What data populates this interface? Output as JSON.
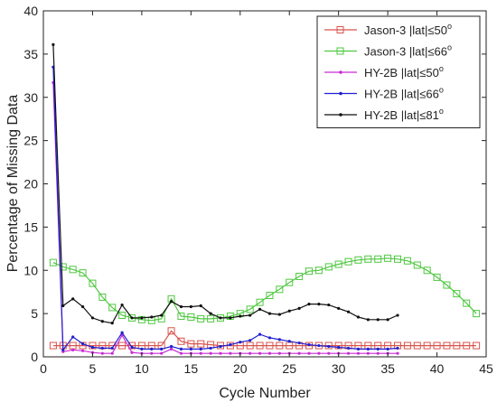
{
  "chart_data": {
    "type": "line",
    "title": "",
    "xlabel": "Cycle Number",
    "ylabel": "Percentage of Missing Data",
    "xlim": [
      0,
      45
    ],
    "ylim": [
      0,
      40
    ],
    "xticks": [
      0,
      5,
      10,
      15,
      20,
      25,
      30,
      35,
      40,
      45
    ],
    "yticks": [
      0,
      5,
      10,
      15,
      20,
      25,
      30,
      35,
      40
    ],
    "grid": false,
    "legend_position": "top-right",
    "series": [
      {
        "name": "Jason-3  |lat|≤50°",
        "legend_parts": [
          "Jason-3  |lat|",
          "≤",
          "50",
          "o"
        ],
        "color": "#d9544d",
        "marker": "square",
        "x": [
          1,
          2,
          3,
          4,
          5,
          6,
          7,
          8,
          9,
          10,
          11,
          12,
          13,
          14,
          15,
          16,
          17,
          18,
          19,
          20,
          21,
          22,
          23,
          24,
          25,
          26,
          27,
          28,
          29,
          30,
          31,
          32,
          33,
          34,
          35,
          36,
          37,
          38,
          39,
          40,
          41,
          42,
          43,
          44
        ],
        "y": [
          1.3,
          1.3,
          1.3,
          1.3,
          1.3,
          1.3,
          1.3,
          1.3,
          1.3,
          1.3,
          1.3,
          1.3,
          3.0,
          1.8,
          1.5,
          1.5,
          1.4,
          1.3,
          1.3,
          1.3,
          1.3,
          1.3,
          1.3,
          1.3,
          1.3,
          1.3,
          1.3,
          1.3,
          1.3,
          1.3,
          1.3,
          1.3,
          1.3,
          1.3,
          1.3,
          1.3,
          1.3,
          1.3,
          1.3,
          1.3,
          1.3,
          1.3,
          1.3,
          1.3
        ]
      },
      {
        "name": "Jason-3  |lat|≤66°",
        "legend_parts": [
          "Jason-3  |lat|",
          "≤",
          "66",
          "o"
        ],
        "color": "#4fc840",
        "marker": "square",
        "x": [
          1,
          2,
          3,
          4,
          5,
          6,
          7,
          8,
          9,
          10,
          11,
          12,
          13,
          14,
          15,
          16,
          17,
          18,
          19,
          20,
          21,
          22,
          23,
          24,
          25,
          26,
          27,
          28,
          29,
          30,
          31,
          32,
          33,
          34,
          35,
          36,
          37,
          38,
          39,
          40,
          41,
          42,
          43,
          44
        ],
        "y": [
          10.9,
          10.4,
          10.1,
          9.7,
          8.5,
          6.9,
          5.7,
          4.8,
          4.5,
          4.3,
          4.2,
          4.4,
          6.7,
          4.7,
          4.6,
          4.4,
          4.4,
          4.5,
          4.7,
          5.0,
          5.5,
          6.3,
          7.1,
          7.8,
          8.6,
          9.3,
          9.9,
          10.0,
          10.4,
          10.7,
          11.0,
          11.2,
          11.3,
          11.3,
          11.4,
          11.3,
          11.1,
          10.6,
          10.0,
          9.2,
          8.3,
          7.3,
          6.2,
          5.0
        ]
      },
      {
        "name": "HY-2B  |lat|≤50°",
        "legend_parts": [
          "HY-2B  |lat|",
          "≤",
          "50",
          "o"
        ],
        "color": "#c92ad4",
        "marker": "dot",
        "x": [
          1,
          2,
          3,
          4,
          5,
          6,
          7,
          8,
          9,
          10,
          11,
          12,
          13,
          14,
          15,
          16,
          17,
          18,
          19,
          20,
          21,
          22,
          23,
          24,
          25,
          26,
          27,
          28,
          29,
          30,
          31,
          32,
          33,
          34,
          35,
          36
        ],
        "y": [
          31.7,
          0.6,
          0.8,
          0.7,
          0.5,
          0.4,
          0.4,
          2.5,
          0.5,
          0.4,
          0.4,
          0.4,
          0.9,
          0.4,
          0.4,
          0.4,
          0.4,
          0.4,
          0.4,
          0.4,
          0.4,
          0.4,
          0.4,
          0.4,
          0.4,
          0.4,
          0.4,
          0.4,
          0.4,
          0.4,
          0.4,
          0.4,
          0.4,
          0.4,
          0.4,
          0.4
        ]
      },
      {
        "name": "HY-2B  |lat|≤66°",
        "legend_parts": [
          "HY-2B  |lat|",
          "≤",
          "66",
          "o"
        ],
        "color": "#1f1fd0",
        "marker": "dot",
        "x": [
          1,
          2,
          3,
          4,
          5,
          6,
          7,
          8,
          9,
          10,
          11,
          12,
          13,
          14,
          15,
          16,
          17,
          18,
          19,
          20,
          21,
          22,
          23,
          24,
          25,
          26,
          27,
          28,
          29,
          30,
          31,
          32,
          33,
          34,
          35,
          36
        ],
        "y": [
          33.5,
          0.8,
          2.3,
          1.5,
          1.1,
          1.0,
          1.0,
          2.8,
          1.1,
          0.9,
          0.9,
          0.9,
          1.2,
          0.9,
          0.9,
          0.9,
          1.0,
          1.2,
          1.4,
          1.7,
          1.9,
          2.6,
          2.2,
          2.0,
          1.8,
          1.6,
          1.4,
          1.3,
          1.2,
          1.1,
          1.0,
          0.9,
          0.9,
          0.9,
          0.9,
          1.0
        ]
      },
      {
        "name": "HY-2B  |lat|≤81°",
        "legend_parts": [
          "HY-2B  |lat|",
          "≤",
          "81",
          "o"
        ],
        "color": "#111111",
        "marker": "dot",
        "x": [
          1,
          2,
          3,
          4,
          5,
          6,
          7,
          8,
          9,
          10,
          11,
          12,
          13,
          14,
          15,
          16,
          17,
          18,
          19,
          20,
          21,
          22,
          23,
          24,
          25,
          26,
          27,
          28,
          29,
          30,
          31,
          32,
          33,
          34,
          35,
          36
        ],
        "y": [
          36.1,
          5.9,
          6.7,
          5.8,
          4.5,
          4.1,
          3.9,
          6.0,
          4.5,
          4.5,
          4.6,
          4.8,
          6.4,
          5.8,
          5.8,
          5.9,
          5.0,
          4.5,
          4.5,
          4.7,
          4.8,
          5.5,
          5.0,
          4.9,
          5.3,
          5.6,
          6.1,
          6.1,
          6.0,
          5.6,
          5.2,
          4.6,
          4.3,
          4.3,
          4.3,
          4.8
        ]
      }
    ]
  }
}
